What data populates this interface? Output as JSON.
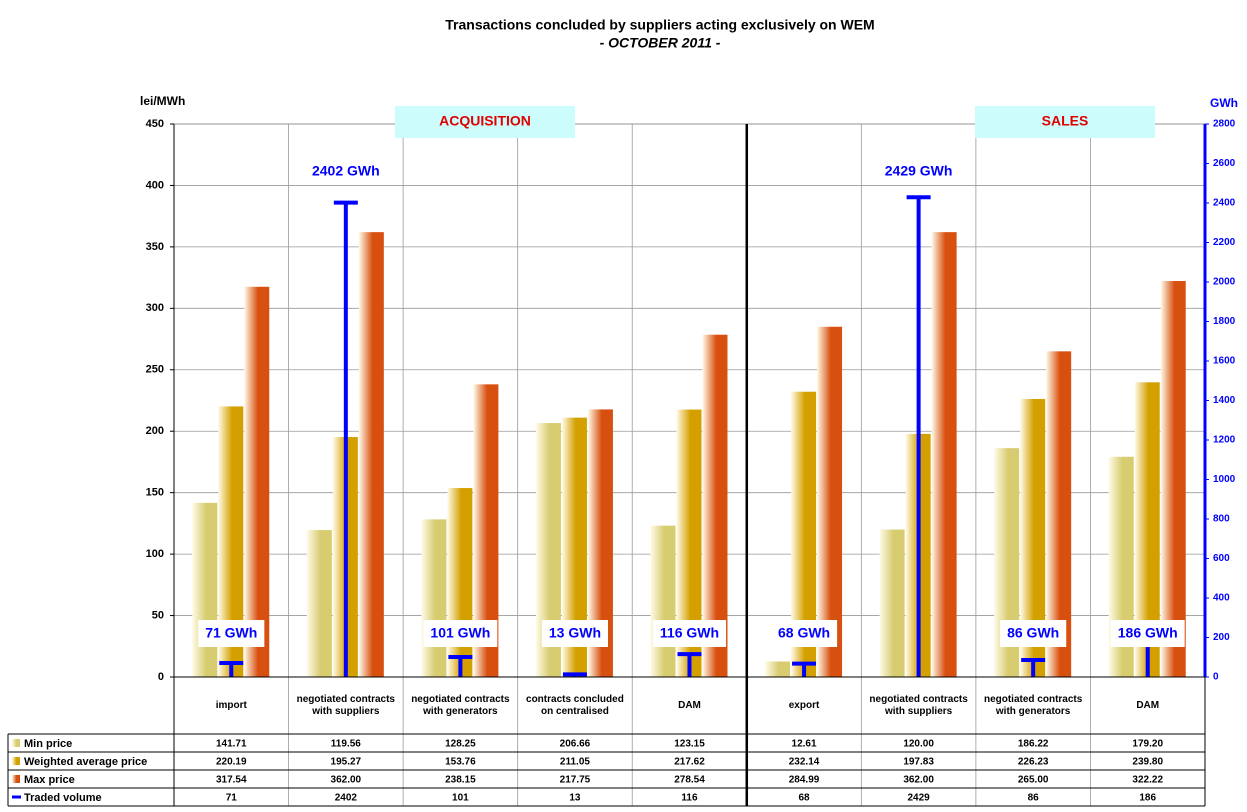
{
  "chart_data": {
    "type": "bar",
    "title": "Transactions concluded by suppliers acting exclusively on WEM",
    "subtitle": "- OCTOBER 2011 -",
    "y_label": "lei/MWh",
    "y2_label": "GWh",
    "annotations": [
      "ACQUISITION",
      "SALES"
    ],
    "categories": [
      "import",
      "negotiated contracts with suppliers",
      "negotiated contracts with generators",
      "contracts concluded on centralised",
      "DAM",
      "export",
      "negotiated contracts with suppliers",
      "negotiated contracts with generators",
      "DAM"
    ],
    "series": [
      {
        "name": "Min price",
        "color": "#d8cc70",
        "values": [
          141.71,
          119.56,
          128.25,
          206.66,
          123.15,
          12.61,
          120.0,
          186.22,
          179.2
        ],
        "value_labels": [
          "141.71",
          "119.56",
          "128.25",
          "206.66",
          "123.15",
          "12.61",
          "120.00",
          "186.22",
          "179.20"
        ]
      },
      {
        "name": "Weighted average price",
        "color": "#d4a000",
        "values": [
          220.19,
          195.27,
          153.76,
          211.05,
          217.62,
          232.14,
          197.83,
          226.23,
          239.8
        ],
        "value_labels": [
          "220.19",
          "195.27",
          "153.76",
          "211.05",
          "217.62",
          "232.14",
          "197.83",
          "226.23",
          "239.80"
        ]
      },
      {
        "name": "Max price",
        "color": "#d85010",
        "values": [
          317.54,
          362.0,
          238.15,
          217.75,
          278.54,
          284.99,
          362.0,
          265.0,
          322.22
        ],
        "value_labels": [
          "317.54",
          "362.00",
          "238.15",
          "217.75",
          "278.54",
          "284.99",
          "362.00",
          "265.00",
          "322.22"
        ]
      },
      {
        "name": "Traded volume",
        "color": "#0000ff",
        "axis": "y2",
        "values": [
          71,
          2402,
          101,
          13,
          116,
          68,
          2429,
          86,
          186
        ],
        "value_labels": [
          "71 GWh",
          "2402 GWh",
          "101 GWh",
          "13 GWh",
          "116 GWh",
          "68 GWh",
          "2429 GWh",
          "86 GWh",
          "186 GWh"
        ]
      }
    ],
    "ylim": [
      0,
      450
    ],
    "yticks": [
      0,
      50,
      100,
      150,
      200,
      250,
      300,
      350,
      400,
      450
    ],
    "y2lim": [
      0,
      2800
    ],
    "y2ticks": [
      0,
      200,
      400,
      600,
      800,
      1000,
      1200,
      1400,
      1600,
      1800,
      2000,
      2200,
      2400,
      2600,
      2800
    ],
    "grid": true
  }
}
